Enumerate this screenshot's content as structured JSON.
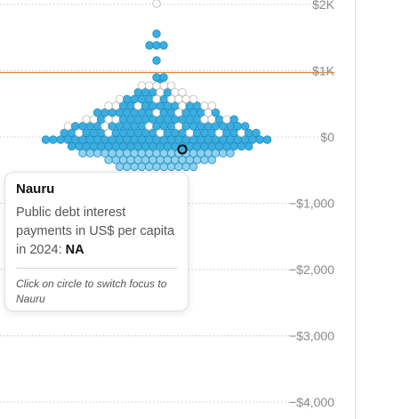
{
  "chart_data": {
    "type": "scatter",
    "subtype": "beeswarm",
    "y_ticks": [
      {
        "value": 2000,
        "label": "$2K"
      },
      {
        "value": 1000,
        "label": "$1K"
      },
      {
        "value": 0,
        "label": "$0"
      },
      {
        "value": -1000,
        "label": "−$1,000"
      },
      {
        "value": -2000,
        "label": "−$2,000"
      },
      {
        "value": -3000,
        "label": "−$3,000"
      },
      {
        "value": -4000,
        "label": "−$4,000"
      }
    ],
    "reference_line": {
      "value": 1000,
      "color": "#d9893f"
    },
    "grid": "dotted horizontal",
    "colors": {
      "filled": "#3aaee0",
      "hollow": "#ffffff",
      "selected_outline": "#111111",
      "tick_label": "#8a8a8a"
    }
  },
  "tooltip": {
    "title": "Nauru",
    "body": "Public debt interest payments in US$ per capita in 2024: ",
    "value": "NA",
    "hint": "Click on circle to switch focus to Nauru"
  }
}
